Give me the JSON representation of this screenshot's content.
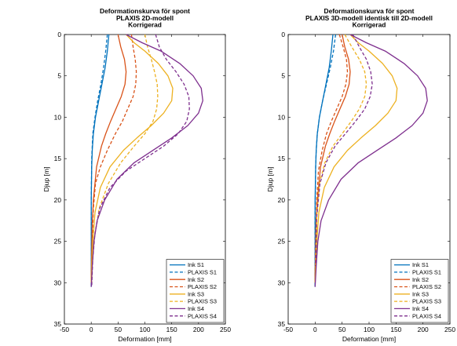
{
  "colors": {
    "S1": "#0072BD",
    "S2": "#D95319",
    "S3": "#EDB120",
    "S4": "#7E2F8E"
  },
  "chart_data": [
    {
      "type": "line",
      "title_lines": [
        "Deformationskurva för spont",
        "PLAXIS 2D-modell",
        "Korrigerad"
      ],
      "xlabel": "Deformation [mm]",
      "ylabel": "Djup [m]",
      "xlim": [
        -50,
        250
      ],
      "ylim": [
        0,
        35
      ],
      "y_reversed": true,
      "xticks": [
        -50,
        0,
        50,
        100,
        150,
        200,
        250
      ],
      "yticks": [
        0,
        5,
        10,
        15,
        20,
        25,
        30,
        35
      ],
      "grid": false,
      "legend_position": "bottom-right",
      "series": [
        {
          "name": "Ink S1",
          "color_key": "S1",
          "dashed": false,
          "x": [
            33,
            30,
            26,
            20,
            14,
            8,
            4,
            2,
            1,
            0,
            0,
            0,
            0
          ],
          "y": [
            0,
            2,
            4,
            6,
            8,
            10,
            12,
            14,
            16,
            20,
            25,
            28,
            30.5
          ]
        },
        {
          "name": "PLAXIS S1",
          "color_key": "S1",
          "dashed": true,
          "x": [
            30,
            27,
            23,
            18,
            12,
            7,
            3,
            1,
            0,
            0
          ],
          "y": [
            0,
            2,
            4,
            6,
            8,
            10,
            12,
            15,
            20,
            30.5
          ]
        },
        {
          "name": "Ink S2",
          "color_key": "S2",
          "dashed": false,
          "x": [
            50,
            55,
            62,
            65,
            63,
            56,
            46,
            36,
            27,
            19,
            10,
            4,
            2,
            1,
            0,
            0
          ],
          "y": [
            0,
            1.5,
            3,
            4.5,
            6,
            7.5,
            9,
            10.5,
            12,
            13.5,
            16,
            20,
            23,
            26,
            29,
            30
          ]
        },
        {
          "name": "PLAXIS S2",
          "color_key": "S2",
          "dashed": true,
          "x": [
            75,
            78,
            82,
            84,
            83,
            78,
            68,
            58,
            45,
            30,
            17,
            8,
            4,
            2,
            1
          ],
          "y": [
            0,
            1.5,
            3,
            4.5,
            6,
            7.5,
            9,
            10.5,
            12,
            14,
            16,
            18,
            21,
            25,
            30
          ]
        },
        {
          "name": "Ink S3",
          "color_key": "S3",
          "dashed": false,
          "x": [
            65,
            80,
            100,
            125,
            143,
            152,
            150,
            135,
            112,
            85,
            60,
            35,
            17,
            7,
            3,
            1,
            0
          ],
          "y": [
            0,
            1,
            2,
            3.5,
            5,
            6.5,
            8,
            9.5,
            11,
            12.5,
            14,
            16,
            18.5,
            21.5,
            25,
            28,
            30
          ]
        },
        {
          "name": "PLAXIS S3",
          "color_key": "S3",
          "dashed": true,
          "x": [
            100,
            105,
            112,
            118,
            123,
            124,
            122,
            115,
            100,
            80,
            55,
            32,
            15,
            6,
            2,
            1
          ],
          "y": [
            0,
            1.5,
            3,
            4.5,
            6,
            7.5,
            9,
            10.5,
            12,
            13.5,
            15.5,
            18,
            21,
            24.5,
            28,
            30
          ]
        },
        {
          "name": "Ink S4",
          "color_key": "S4",
          "dashed": false,
          "x": [
            65,
            95,
            130,
            165,
            190,
            205,
            208,
            200,
            180,
            150,
            115,
            80,
            48,
            25,
            11,
            5,
            2,
            0
          ],
          "y": [
            0,
            1,
            2,
            3.5,
            5,
            6.5,
            8,
            9.5,
            11,
            12.5,
            14,
            15.5,
            17.5,
            20,
            22.5,
            25,
            28,
            30.5
          ]
        },
        {
          "name": "PLAXIS S4",
          "color_key": "S4",
          "dashed": true,
          "x": [
            120,
            127,
            140,
            158,
            173,
            182,
            183,
            178,
            162,
            135,
            100,
            65,
            35,
            16,
            7,
            3,
            1
          ],
          "y": [
            0,
            1.5,
            3,
            4.5,
            6,
            7.5,
            9,
            10.5,
            12,
            13.5,
            15,
            16.5,
            18.5,
            21,
            24,
            27,
            30.5
          ]
        }
      ]
    },
    {
      "type": "line",
      "title_lines": [
        "Deformationskurva för spont",
        "PLAXIS 3D-modell identisk till 2D-modell",
        "Korrigerad"
      ],
      "xlabel": "Deformation [mm]",
      "ylabel": "Djup [m]",
      "xlim": [
        -50,
        250
      ],
      "ylim": [
        0,
        35
      ],
      "y_reversed": true,
      "xticks": [
        -50,
        0,
        50,
        100,
        150,
        200,
        250
      ],
      "yticks": [
        0,
        5,
        10,
        15,
        20,
        25,
        30,
        35
      ],
      "grid": false,
      "legend_position": "bottom-right",
      "series": [
        {
          "name": "Ink S1",
          "color_key": "S1",
          "dashed": false,
          "x": [
            33,
            30,
            26,
            20,
            14,
            8,
            4,
            2,
            1,
            0,
            0,
            0,
            0
          ],
          "y": [
            0,
            2,
            4,
            6,
            8,
            10,
            12,
            14,
            16,
            20,
            25,
            28,
            30.5
          ]
        },
        {
          "name": "PLAXIS S1",
          "color_key": "S1",
          "dashed": true,
          "x": [
            38,
            34,
            28,
            21,
            14,
            8,
            4,
            2,
            1,
            0,
            0
          ],
          "y": [
            0,
            2,
            4,
            6,
            8,
            10,
            12,
            14,
            16,
            22,
            30.5
          ]
        },
        {
          "name": "Ink S2",
          "color_key": "S2",
          "dashed": false,
          "x": [
            50,
            55,
            62,
            65,
            63,
            56,
            46,
            36,
            27,
            19,
            10,
            4,
            2,
            1,
            0,
            0
          ],
          "y": [
            0,
            1.5,
            3,
            4.5,
            6,
            7.5,
            9,
            10.5,
            12,
            13.5,
            16,
            20,
            23,
            26,
            29,
            30
          ]
        },
        {
          "name": "PLAXIS S2",
          "color_key": "S2",
          "dashed": true,
          "x": [
            45,
            52,
            58,
            60,
            57,
            50,
            40,
            30,
            21,
            13,
            6,
            3,
            1,
            0
          ],
          "y": [
            0,
            1.5,
            3,
            4.5,
            6,
            7.5,
            9,
            10.5,
            12,
            14,
            16.5,
            20,
            25,
            30
          ]
        },
        {
          "name": "Ink S3",
          "color_key": "S3",
          "dashed": false,
          "x": [
            65,
            80,
            100,
            125,
            143,
            152,
            150,
            135,
            112,
            85,
            60,
            35,
            17,
            7,
            3,
            1,
            0
          ],
          "y": [
            0,
            1,
            2,
            3.5,
            5,
            6.5,
            8,
            9.5,
            11,
            12.5,
            14,
            16,
            18.5,
            21.5,
            25,
            28,
            30
          ]
        },
        {
          "name": "PLAXIS S3",
          "color_key": "S3",
          "dashed": true,
          "x": [
            55,
            68,
            82,
            92,
            95,
            92,
            82,
            67,
            50,
            33,
            18,
            8,
            3,
            1
          ],
          "y": [
            0,
            1.5,
            3,
            4.5,
            6,
            7.5,
            9,
            10.5,
            12,
            13.5,
            15.5,
            18,
            22,
            28
          ]
        },
        {
          "name": "Ink S4",
          "color_key": "S4",
          "dashed": false,
          "x": [
            65,
            95,
            130,
            165,
            190,
            205,
            208,
            200,
            180,
            150,
            115,
            80,
            48,
            25,
            11,
            5,
            2,
            0
          ],
          "y": [
            0,
            1,
            2,
            3.5,
            5,
            6.5,
            8,
            9.5,
            11,
            12.5,
            14,
            15.5,
            17.5,
            20,
            22.5,
            25,
            28,
            30.5
          ]
        },
        {
          "name": "PLAXIS S4",
          "color_key": "S4",
          "dashed": true,
          "x": [
            70,
            82,
            95,
            103,
            106,
            102,
            92,
            75,
            56,
            37,
            20,
            9,
            3,
            1
          ],
          "y": [
            0,
            1.5,
            3,
            4.5,
            6,
            7.5,
            9,
            10.5,
            12,
            13.5,
            15.5,
            18,
            22,
            28
          ]
        }
      ]
    }
  ]
}
